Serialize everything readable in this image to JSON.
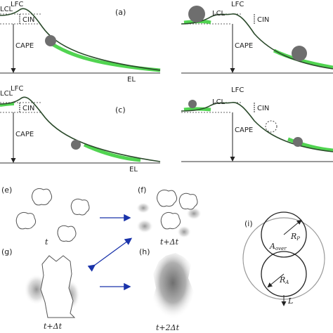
{
  "panels": {
    "a": {
      "label": "(a)",
      "lcl": "LCL",
      "lfc": "LFC",
      "cin": "CIN",
      "cape": "CAPE",
      "el": "EL"
    },
    "b": {
      "lcl": "LCL",
      "lfc": "LFC",
      "cin": "CIN",
      "cape": "CAPE"
    },
    "c": {
      "label": "(c)",
      "lcl": "LCL",
      "lfc": "LFC",
      "cin": "CIN",
      "cape": "CAPE",
      "el": "EL"
    },
    "d": {
      "lcl": "LCL",
      "lfc": "LFC",
      "cin": "CIN",
      "cape": "CAPE"
    },
    "e": {
      "label": "(e)",
      "time": "t"
    },
    "f": {
      "label": "(f)",
      "time": "t+Δt"
    },
    "g": {
      "label": "(g)",
      "time": "t+Δt"
    },
    "h": {
      "label": "(h)",
      "time": "t+2Δt"
    },
    "i": {
      "label": "(i)",
      "rp_main": "R",
      "rp_sub": "P",
      "aover_main": "A",
      "aover_sub": "over",
      "ra_main": "R",
      "ra_sub": "A",
      "l": "L"
    }
  },
  "colors": {
    "curve": "#2b4a2b",
    "green": "#33cc33",
    "ball": "#6e6e6e",
    "arrow": "#1a33aa",
    "dotted": "#666666"
  }
}
